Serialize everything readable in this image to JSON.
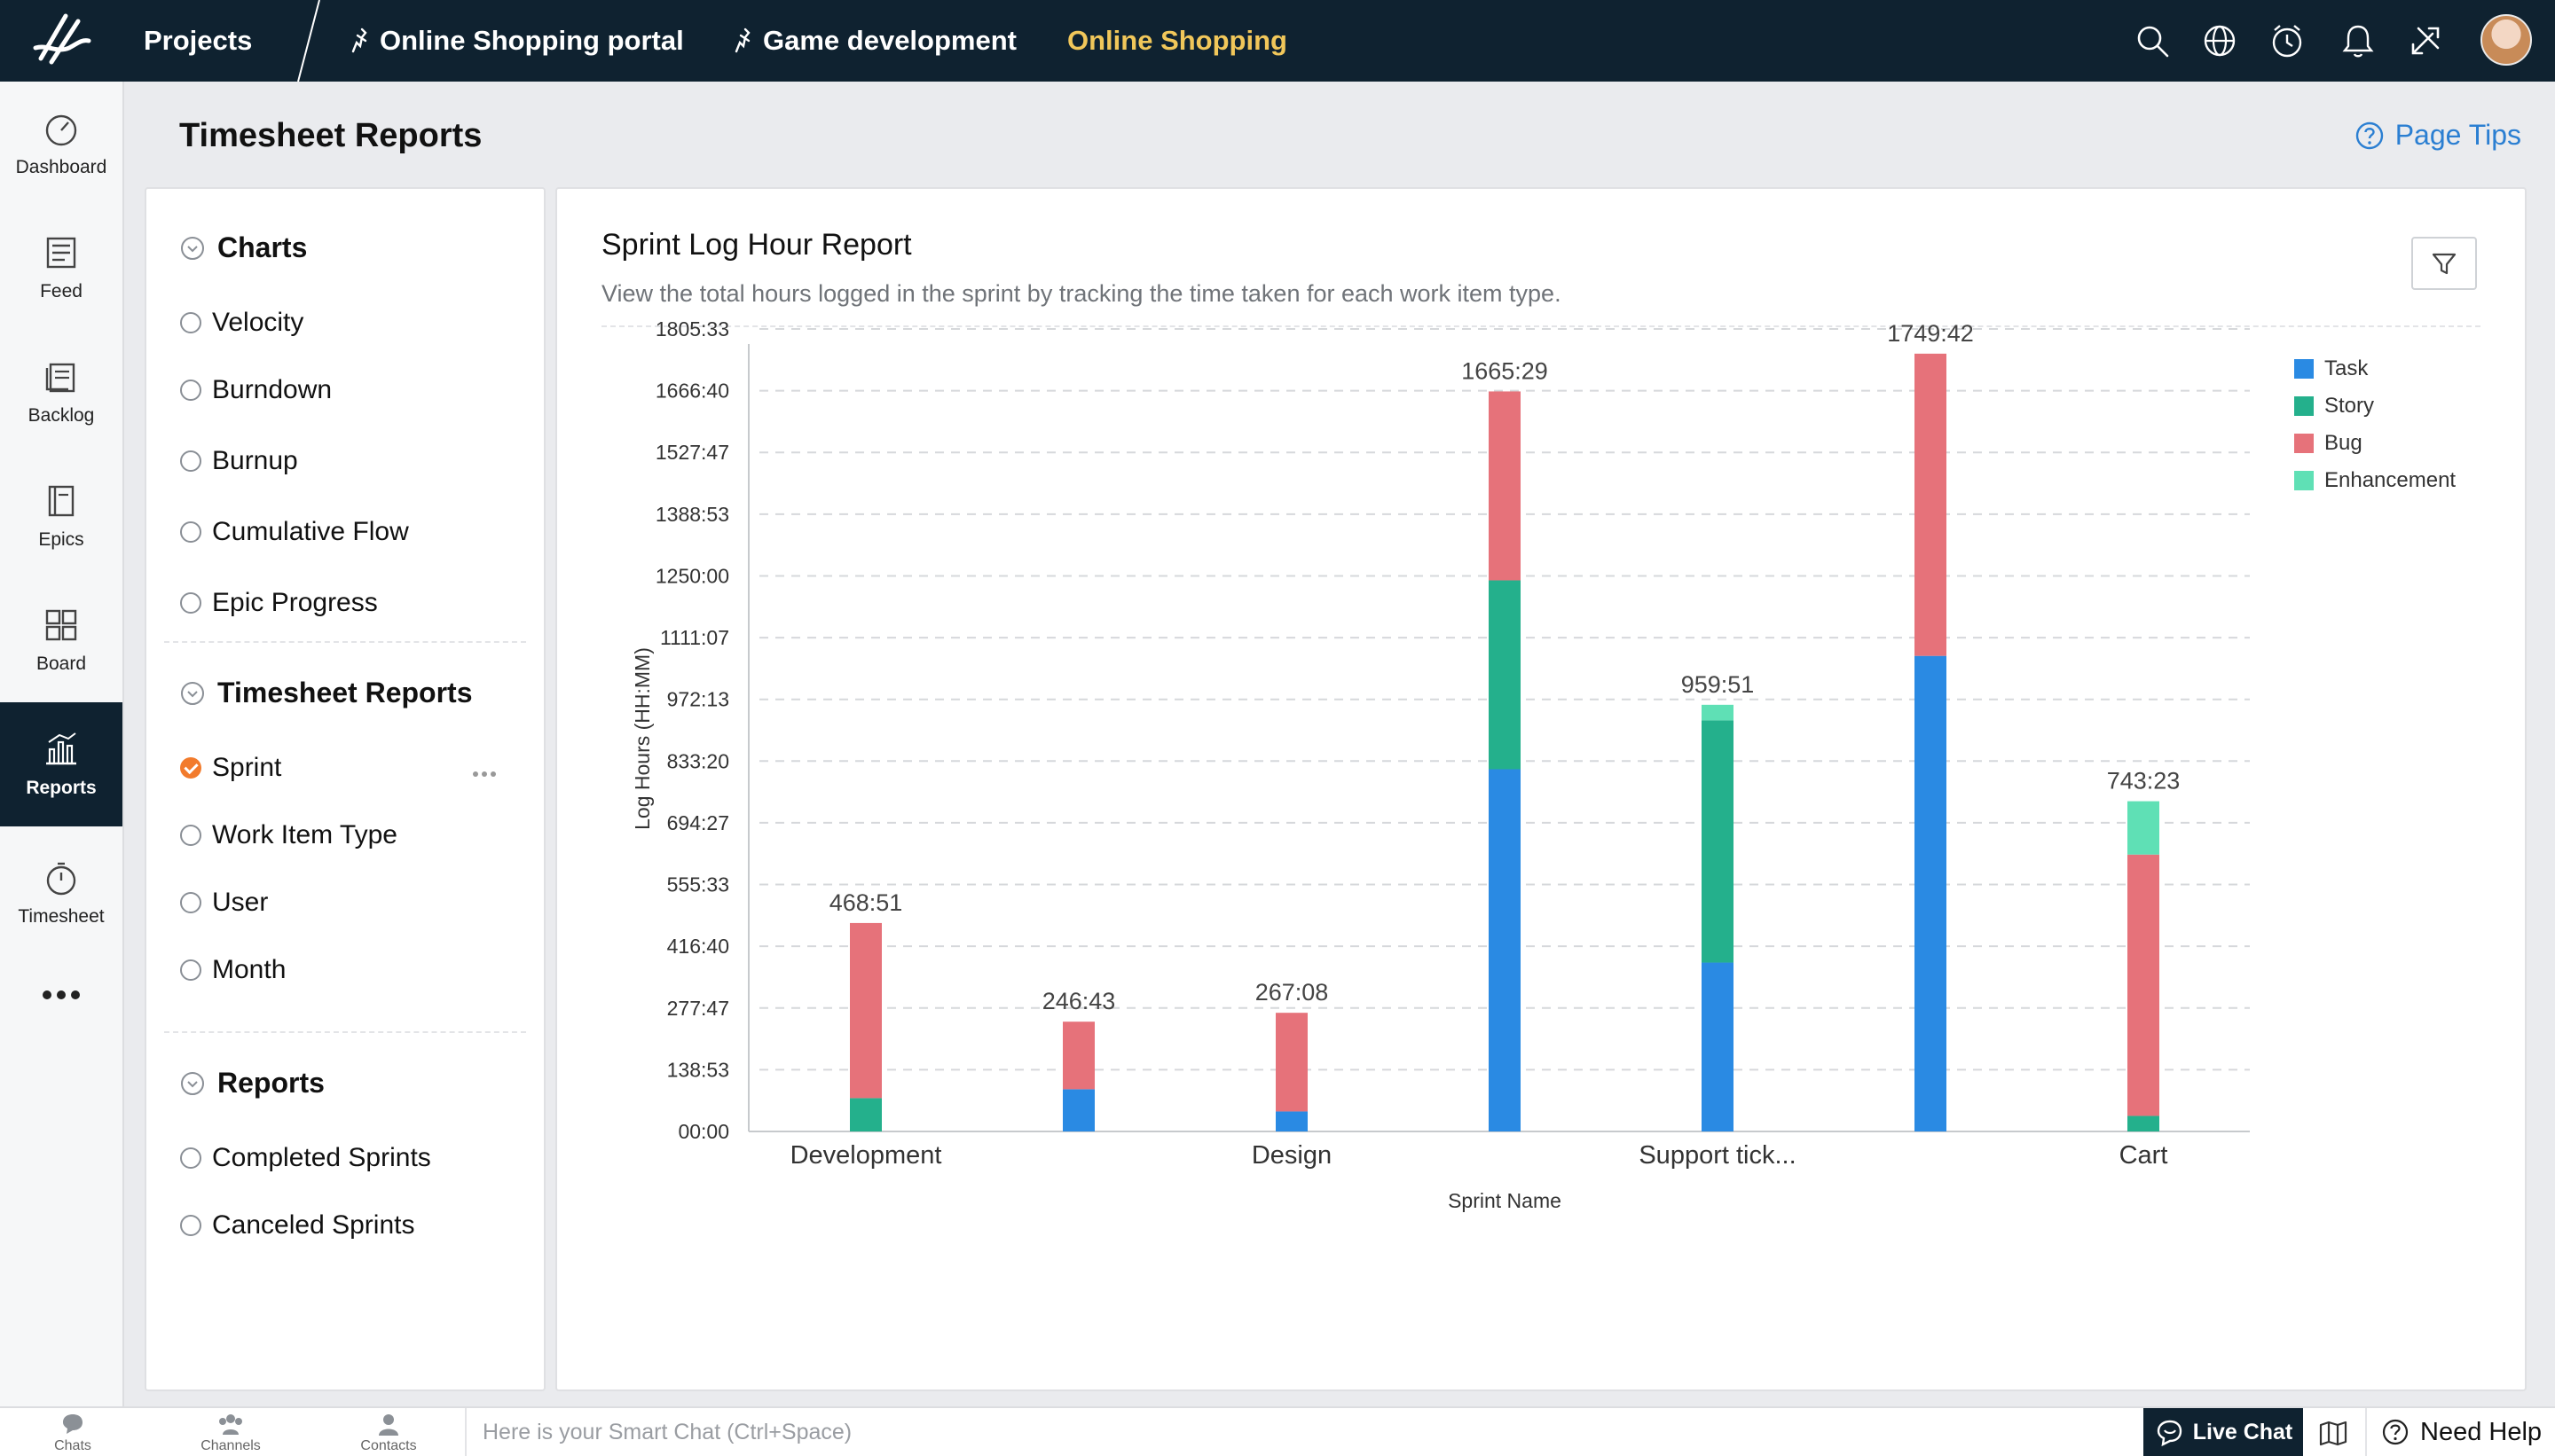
{
  "topbar": {
    "projects_label": "Projects",
    "tabs": [
      {
        "label": "Online Shopping portal",
        "pinned": true
      },
      {
        "label": "Game development",
        "pinned": true
      },
      {
        "label": "Online Shopping",
        "active": true
      }
    ],
    "icons": [
      "search-icon",
      "globe-icon",
      "clock-icon",
      "bell-icon",
      "tools-icon"
    ]
  },
  "rail": {
    "items": [
      {
        "label": "Dashboard",
        "icon": "gauge-icon"
      },
      {
        "label": "Feed",
        "icon": "feed-icon"
      },
      {
        "label": "Backlog",
        "icon": "backlog-icon"
      },
      {
        "label": "Epics",
        "icon": "epics-icon"
      },
      {
        "label": "Board",
        "icon": "board-icon"
      },
      {
        "label": "Reports",
        "icon": "reports-icon",
        "active": true
      },
      {
        "label": "Timesheet",
        "icon": "stopwatch-icon"
      }
    ]
  },
  "page": {
    "title": "Timesheet Reports",
    "tips_label": "Page Tips"
  },
  "left_panel": {
    "charts_heading": "Charts",
    "charts_options": [
      "Velocity",
      "Burndown",
      "Burnup",
      "Cumulative Flow",
      "Epic Progress"
    ],
    "timesheet_heading": "Timesheet Reports",
    "timesheet_options": [
      {
        "label": "Sprint",
        "selected": true
      },
      {
        "label": "Work Item Type"
      },
      {
        "label": "User"
      },
      {
        "label": "Month"
      }
    ],
    "reports_heading": "Reports",
    "reports_options": [
      "Completed Sprints",
      "Canceled Sprints"
    ]
  },
  "report": {
    "title": "Sprint Log Hour Report",
    "description": "View the total hours logged in the sprint by tracking the time taken for each work item type."
  },
  "colors": {
    "accent": "#2b7fd2",
    "active_tab": "#f1c75a",
    "topbar": "#0f2230",
    "selected_radio": "#f27b2c"
  },
  "chart_data": {
    "type": "bar",
    "stacked": true,
    "xlabel": "Sprint Name",
    "ylabel": "Log Hours (HH:MM)",
    "ylim": [
      0,
      1805.55
    ],
    "y_ticks": [
      {
        "label": "00:00",
        "value": 0
      },
      {
        "label": "138:53",
        "value": 138.88
      },
      {
        "label": "277:47",
        "value": 277.78
      },
      {
        "label": "416:40",
        "value": 416.67
      },
      {
        "label": "555:33",
        "value": 555.55
      },
      {
        "label": "694:27",
        "value": 694.45
      },
      {
        "label": "833:20",
        "value": 833.33
      },
      {
        "label": "972:13",
        "value": 972.22
      },
      {
        "label": "1111:07",
        "value": 1111.12
      },
      {
        "label": "1250:00",
        "value": 1250
      },
      {
        "label": "1388:53",
        "value": 1388.88
      },
      {
        "label": "1527:47",
        "value": 1527.78
      },
      {
        "label": "1666:40",
        "value": 1666.67
      },
      {
        "label": "1805:33",
        "value": 1805.55
      }
    ],
    "categories": [
      "Development",
      "",
      "Design",
      "",
      "Support tick...",
      "",
      "Cart"
    ],
    "totals": [
      "468:51",
      "246:43",
      "267:08",
      "1665:29",
      "959:51",
      "1749:42",
      "743:23"
    ],
    "series": [
      {
        "name": "Task",
        "color": "#2a8ae3",
        "values": [
          0,
          95,
          45,
          815,
          380,
          1070,
          0
        ]
      },
      {
        "name": "Story",
        "color": "#24b08c",
        "values": [
          75,
          0,
          0,
          425,
          545,
          0,
          35
        ]
      },
      {
        "name": "Bug",
        "color": "#e6727a",
        "values": [
          394,
          152,
          222,
          425,
          0,
          680,
          588
        ]
      },
      {
        "name": "Enhancement",
        "color": "#5fe0b5",
        "values": [
          0,
          0,
          0,
          0,
          35,
          0,
          120
        ]
      }
    ],
    "grid": true,
    "legend_position": "top-right"
  },
  "bottombar": {
    "items": [
      {
        "label": "Chats",
        "icon": "chat-icon"
      },
      {
        "label": "Channels",
        "icon": "channels-icon"
      },
      {
        "label": "Contacts",
        "icon": "contacts-icon"
      }
    ],
    "smartchat_placeholder": "Here is your Smart Chat (Ctrl+Space)",
    "live_chat": "Live Chat",
    "need_help": "Need Help"
  }
}
